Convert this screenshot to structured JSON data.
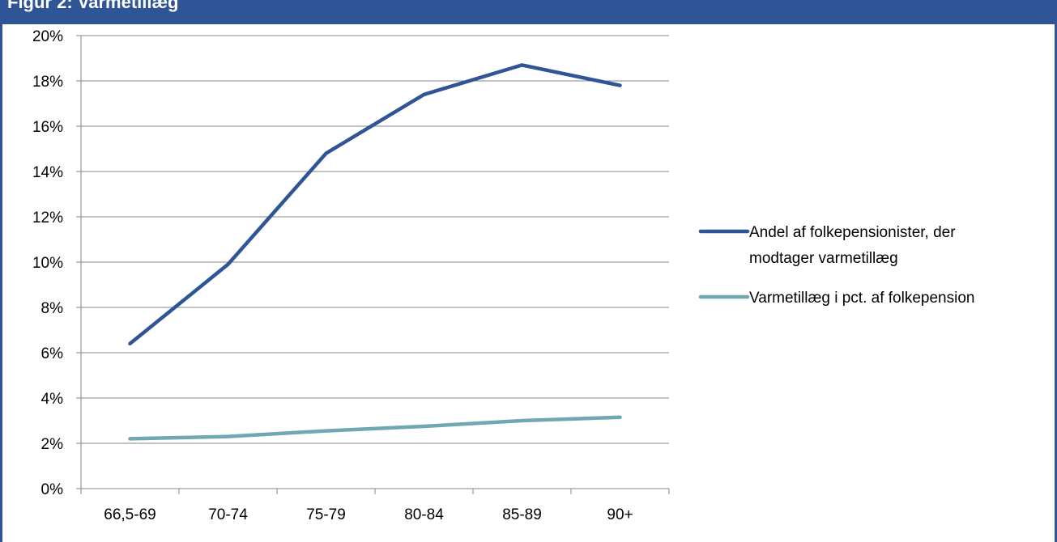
{
  "header": {
    "title": "Figur 2: Varmetillæg"
  },
  "chart_data": {
    "type": "line",
    "title": "",
    "xlabel": "",
    "ylabel": "",
    "categories": [
      "66,5-69",
      "70-74",
      "75-79",
      "80-84",
      "85-89",
      "90+"
    ],
    "y_ticks": [
      "0%",
      "2%",
      "4%",
      "6%",
      "8%",
      "10%",
      "12%",
      "14%",
      "16%",
      "18%",
      "20%"
    ],
    "ylim": [
      0,
      20
    ],
    "grid": true,
    "legend_position": "right",
    "series": [
      {
        "name": "Andel af folkepensionister, der modtager varmetillæg",
        "name_lines": [
          "Andel af folkepensionister, der",
          "modtager varmetillæg"
        ],
        "values": [
          6.4,
          9.9,
          14.8,
          17.4,
          18.7,
          17.8
        ],
        "color": "#2f5597"
      },
      {
        "name": "Varmetillæg i pct. af folkepension",
        "name_lines": [
          "Varmetillæg i pct. af folkepension"
        ],
        "values": [
          2.2,
          2.3,
          2.55,
          2.75,
          3.0,
          3.15
        ],
        "color": "#6fa8b0"
      }
    ]
  }
}
